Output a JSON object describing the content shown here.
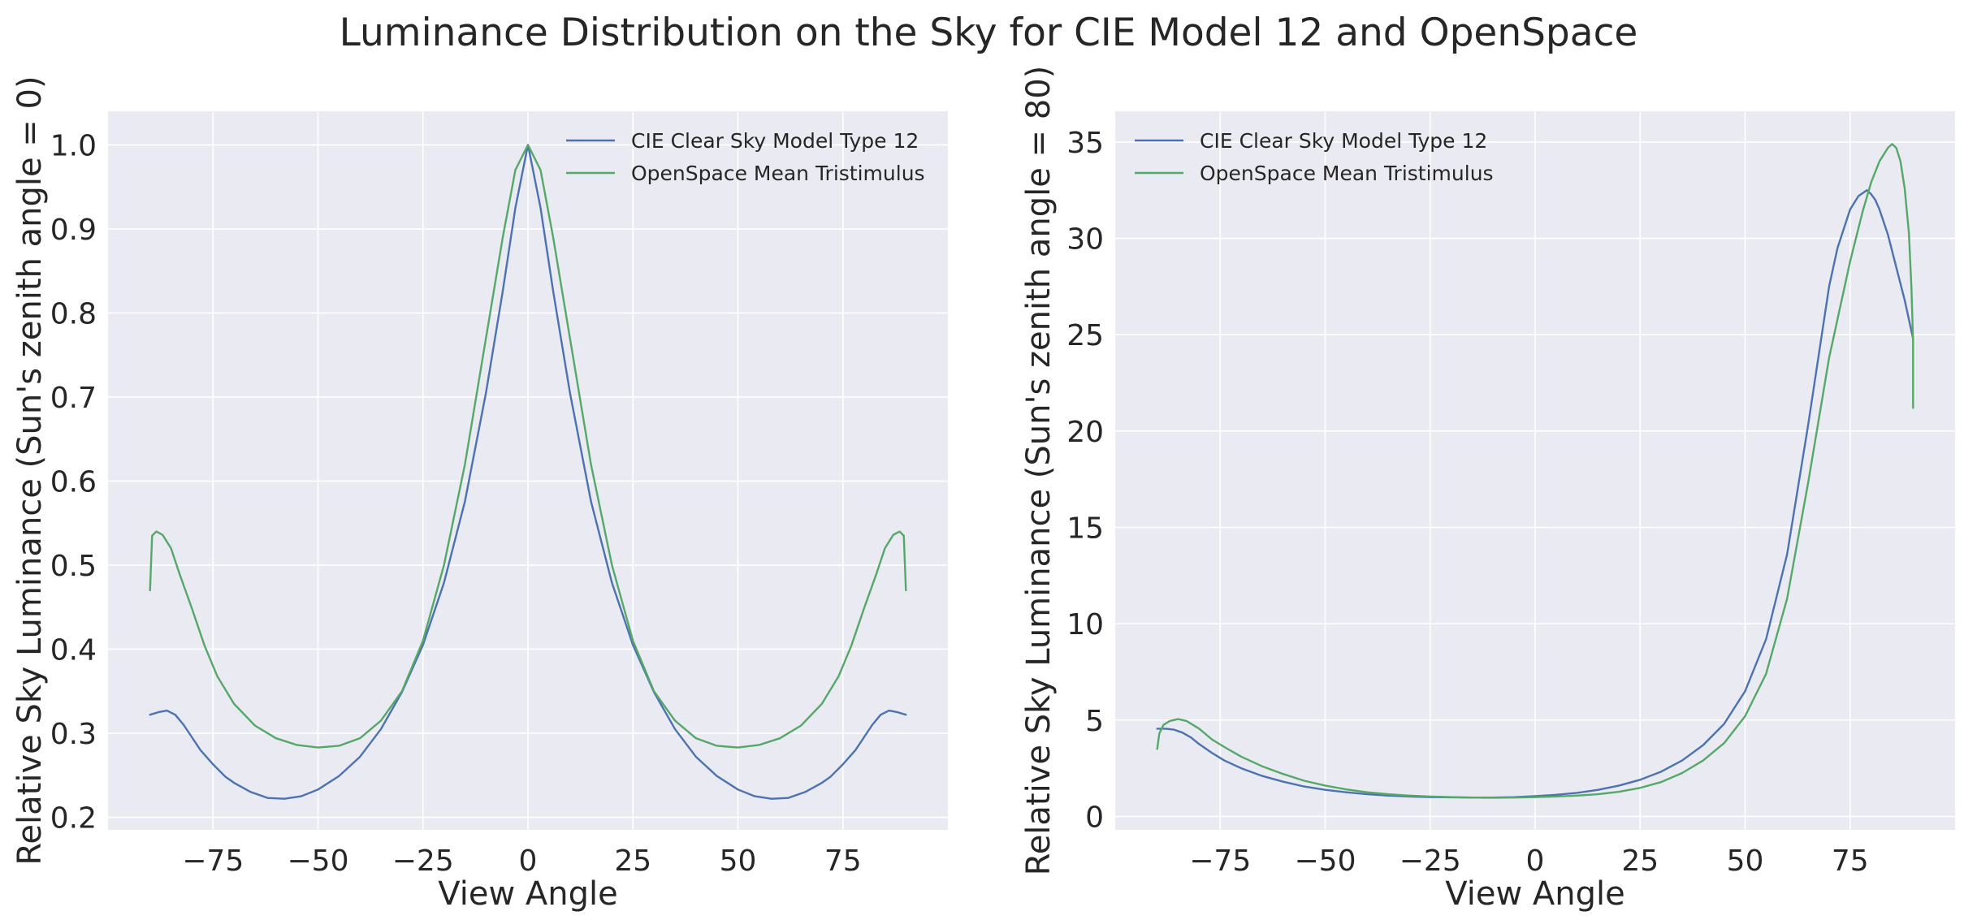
{
  "figure": {
    "title": "Luminance Distribution on the Sky for CIE Model 12 and OpenSpace",
    "colors": {
      "background": "#eaeaf2",
      "grid": "#ffffff",
      "text": "#262626",
      "cie": "#4c72b0",
      "openspace": "#55a868"
    }
  },
  "chart_data": [
    {
      "type": "line",
      "title": "",
      "xlabel": "View Angle",
      "ylabel": "Relative Sky Luminance (Sun's zenith angle = 0)",
      "xlim": [
        -100,
        100
      ],
      "ylim": [
        0.185,
        1.04
      ],
      "xticks": [
        -75,
        -50,
        -25,
        0,
        25,
        50,
        75
      ],
      "xtick_labels": [
        "−75",
        "−50",
        "−25",
        "0",
        "25",
        "50",
        "75"
      ],
      "yticks": [
        0.2,
        0.3,
        0.4,
        0.5,
        0.6,
        0.7,
        0.8,
        0.9,
        1.0
      ],
      "ytick_labels": [
        "0.2",
        "0.3",
        "0.4",
        "0.5",
        "0.6",
        "0.7",
        "0.8",
        "0.9",
        "1.0"
      ],
      "grid": true,
      "legend": "top-right",
      "series": [
        {
          "name": "CIE Clear Sky Model Type 12",
          "color": "#4c72b0",
          "x": [
            -90,
            -88,
            -86,
            -84,
            -82,
            -80,
            -78,
            -75,
            -72,
            -70,
            -66,
            -62,
            -58,
            -54,
            -50,
            -45,
            -40,
            -35,
            -30,
            -25,
            -20,
            -15,
            -10,
            -6,
            -3,
            0,
            3,
            6,
            10,
            15,
            20,
            25,
            30,
            35,
            40,
            45,
            50,
            54,
            58,
            62,
            66,
            70,
            72,
            75,
            78,
            80,
            82,
            84,
            86,
            88,
            90
          ],
          "y": [
            0.322,
            0.325,
            0.327,
            0.322,
            0.31,
            0.295,
            0.28,
            0.263,
            0.248,
            0.241,
            0.23,
            0.223,
            0.222,
            0.225,
            0.233,
            0.249,
            0.272,
            0.305,
            0.349,
            0.405,
            0.479,
            0.576,
            0.705,
            0.826,
            0.925,
            1.0,
            0.925,
            0.826,
            0.705,
            0.576,
            0.479,
            0.405,
            0.349,
            0.305,
            0.272,
            0.249,
            0.233,
            0.225,
            0.222,
            0.223,
            0.23,
            0.241,
            0.248,
            0.263,
            0.28,
            0.295,
            0.31,
            0.322,
            0.327,
            0.325,
            0.322
          ]
        },
        {
          "name": "OpenSpace Mean Tristimulus",
          "color": "#55a868",
          "x": [
            -90,
            -89.5,
            -88.5,
            -87,
            -85,
            -83,
            -80,
            -77,
            -74,
            -70,
            -65,
            -60,
            -55,
            -50,
            -45,
            -40,
            -35,
            -30,
            -25,
            -20,
            -15,
            -10,
            -6,
            -3,
            0,
            3,
            6,
            10,
            15,
            20,
            25,
            30,
            35,
            40,
            45,
            50,
            55,
            60,
            65,
            70,
            74,
            77,
            80,
            83,
            85,
            87,
            88.5,
            89.5,
            90
          ],
          "y": [
            0.47,
            0.535,
            0.54,
            0.536,
            0.52,
            0.49,
            0.448,
            0.404,
            0.368,
            0.335,
            0.309,
            0.294,
            0.286,
            0.283,
            0.285,
            0.294,
            0.315,
            0.35,
            0.41,
            0.5,
            0.62,
            0.77,
            0.89,
            0.97,
            1.0,
            0.97,
            0.89,
            0.77,
            0.62,
            0.5,
            0.41,
            0.35,
            0.315,
            0.294,
            0.285,
            0.283,
            0.286,
            0.294,
            0.309,
            0.335,
            0.368,
            0.404,
            0.448,
            0.49,
            0.52,
            0.536,
            0.54,
            0.535,
            0.47
          ]
        }
      ]
    },
    {
      "type": "line",
      "title": "",
      "xlabel": "View Angle",
      "ylabel": "Relative Sky Luminance (Sun's zenith angle = 80)",
      "xlim": [
        -100,
        100
      ],
      "ylim": [
        -0.7,
        36.6
      ],
      "xticks": [
        -75,
        -50,
        -25,
        0,
        25,
        50,
        75
      ],
      "xtick_labels": [
        "−75",
        "−50",
        "−25",
        "0",
        "25",
        "50",
        "75"
      ],
      "yticks": [
        0,
        5,
        10,
        15,
        20,
        25,
        30,
        35
      ],
      "ytick_labels": [
        "0",
        "5",
        "10",
        "15",
        "20",
        "25",
        "30",
        "35"
      ],
      "grid": true,
      "legend": "top-left",
      "series": [
        {
          "name": "CIE Clear Sky Model Type 12",
          "color": "#4c72b0",
          "x": [
            -90,
            -88,
            -86,
            -84,
            -82,
            -80,
            -77,
            -74,
            -70,
            -65,
            -60,
            -55,
            -50,
            -45,
            -40,
            -35,
            -30,
            -25,
            -20,
            -15,
            -12,
            -10,
            -5,
            0,
            5,
            10,
            15,
            20,
            25,
            30,
            35,
            40,
            45,
            50,
            55,
            60,
            65,
            70,
            72,
            75,
            77,
            79,
            80,
            81,
            82,
            84,
            86,
            88,
            90
          ],
          "y": [
            4.55,
            4.55,
            4.5,
            4.35,
            4.1,
            3.75,
            3.3,
            2.9,
            2.5,
            2.1,
            1.8,
            1.55,
            1.38,
            1.25,
            1.15,
            1.08,
            1.03,
            1.0,
            0.99,
            0.98,
            0.98,
            0.98,
            1.0,
            1.05,
            1.12,
            1.22,
            1.38,
            1.6,
            1.9,
            2.32,
            2.9,
            3.7,
            4.8,
            6.5,
            9.2,
            13.6,
            20.3,
            27.5,
            29.5,
            31.5,
            32.2,
            32.5,
            32.3,
            32.0,
            31.5,
            30.2,
            28.5,
            26.8,
            24.8
          ]
        },
        {
          "name": "OpenSpace Mean Tristimulus",
          "color": "#55a868",
          "x": [
            -90,
            -89.5,
            -88.5,
            -87,
            -85,
            -83,
            -80,
            -77,
            -74,
            -70,
            -65,
            -60,
            -55,
            -50,
            -45,
            -40,
            -35,
            -30,
            -25,
            -20,
            -15,
            -12,
            -10,
            -5,
            0,
            5,
            10,
            15,
            20,
            25,
            30,
            35,
            40,
            45,
            50,
            55,
            60,
            65,
            70,
            75,
            78,
            80,
            82,
            84,
            85,
            86,
            87,
            88,
            89,
            89.6,
            90
          ],
          "y": [
            3.5,
            4.3,
            4.75,
            4.95,
            5.05,
            4.95,
            4.55,
            4.0,
            3.6,
            3.1,
            2.6,
            2.2,
            1.85,
            1.6,
            1.4,
            1.25,
            1.15,
            1.08,
            1.03,
            1.0,
            0.98,
            0.97,
            0.97,
            0.98,
            1.0,
            1.03,
            1.08,
            1.15,
            1.28,
            1.48,
            1.78,
            2.25,
            2.9,
            3.8,
            5.2,
            7.4,
            11.3,
            17.3,
            23.8,
            28.8,
            31.4,
            32.9,
            34.0,
            34.7,
            34.9,
            34.7,
            34.0,
            32.6,
            30.3,
            27.5,
            24.7
          ]
        }
      ],
      "series_extra": {
        "name": "",
        "note_x": [
          90,
          90
        ],
        "note_y": [
          24.7,
          21.2
        ]
      }
    }
  ]
}
